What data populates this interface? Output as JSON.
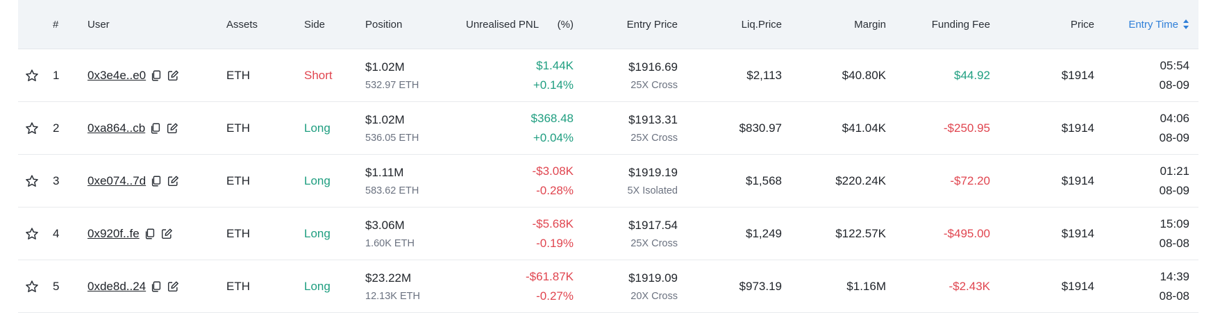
{
  "headers": {
    "index": "#",
    "user": "User",
    "assets": "Assets",
    "side": "Side",
    "position": "Position",
    "pnl": "Unrealised PNL",
    "pct": "(%)",
    "entry_price": "Entry Price",
    "liq_price": "Liq.Price",
    "margin": "Margin",
    "funding_fee": "Funding Fee",
    "price": "Price",
    "entry_time": "Entry Time"
  },
  "colors": {
    "positive": "#1f9e80",
    "negative": "#e0454f",
    "accent": "#2f7fd8"
  },
  "rows": [
    {
      "index": "1",
      "user": "0x3e4e..e0",
      "asset": "ETH",
      "side": "Short",
      "position_usd": "$1.02M",
      "position_size": "532.97 ETH",
      "pnl": "$1.44K",
      "pnl_pct": "+0.14%",
      "entry_price": "$1916.69",
      "leverage": "25X Cross",
      "liq_price": "$2,113",
      "margin": "$40.80K",
      "funding_fee": "$44.92",
      "price": "$1914",
      "time": "05:54",
      "date": "08-09"
    },
    {
      "index": "2",
      "user": "0xa864..cb",
      "asset": "ETH",
      "side": "Long",
      "position_usd": "$1.02M",
      "position_size": "536.05 ETH",
      "pnl": "$368.48",
      "pnl_pct": "+0.04%",
      "entry_price": "$1913.31",
      "leverage": "25X Cross",
      "liq_price": "$830.97",
      "margin": "$41.04K",
      "funding_fee": "-$250.95",
      "price": "$1914",
      "time": "04:06",
      "date": "08-09"
    },
    {
      "index": "3",
      "user": "0xe074..7d",
      "asset": "ETH",
      "side": "Long",
      "position_usd": "$1.11M",
      "position_size": "583.62 ETH",
      "pnl": "-$3.08K",
      "pnl_pct": "-0.28%",
      "entry_price": "$1919.19",
      "leverage": "5X Isolated",
      "liq_price": "$1,568",
      "margin": "$220.24K",
      "funding_fee": "-$72.20",
      "price": "$1914",
      "time": "01:21",
      "date": "08-09"
    },
    {
      "index": "4",
      "user": "0x920f..fe",
      "asset": "ETH",
      "side": "Long",
      "position_usd": "$3.06M",
      "position_size": "1.60K ETH",
      "pnl": "-$5.68K",
      "pnl_pct": "-0.19%",
      "entry_price": "$1917.54",
      "leverage": "25X Cross",
      "liq_price": "$1,249",
      "margin": "$122.57K",
      "funding_fee": "-$495.00",
      "price": "$1914",
      "time": "15:09",
      "date": "08-08"
    },
    {
      "index": "5",
      "user": "0xde8d..24",
      "asset": "ETH",
      "side": "Long",
      "position_usd": "$23.22M",
      "position_size": "12.13K ETH",
      "pnl": "-$61.87K",
      "pnl_pct": "-0.27%",
      "entry_price": "$1919.09",
      "leverage": "20X Cross",
      "liq_price": "$973.19",
      "margin": "$1.16M",
      "funding_fee": "-$2.43K",
      "price": "$1914",
      "time": "14:39",
      "date": "08-08"
    }
  ]
}
